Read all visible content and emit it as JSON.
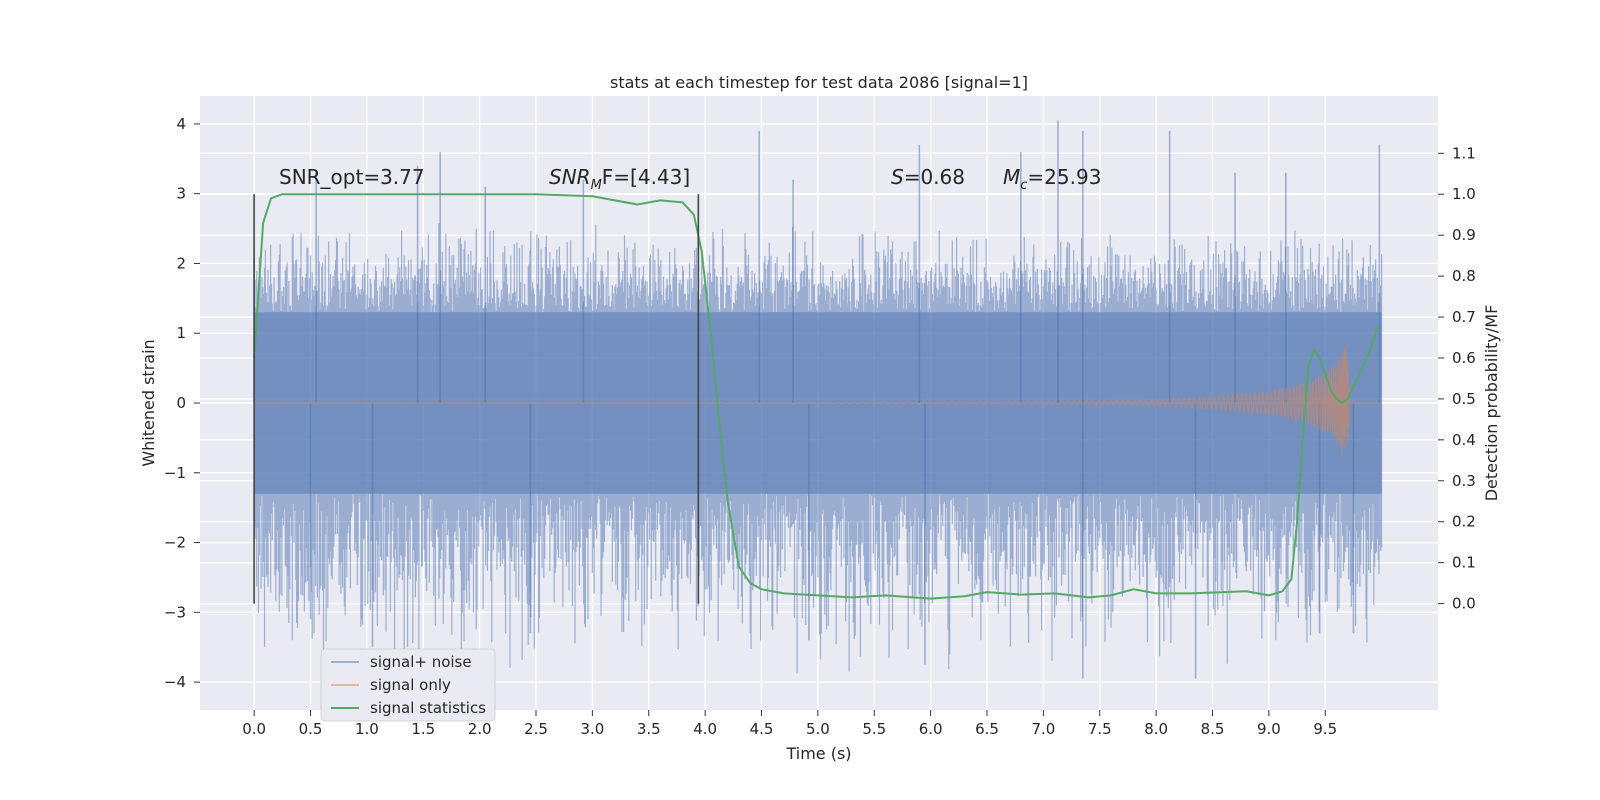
{
  "chart_data": {
    "type": "line",
    "title": "stats at each timestep for test data 2086 [signal=1]",
    "xlabel": "Time (s)",
    "ylabel": "Whitened strain",
    "ylabel_right": "Detection probability/MF",
    "xlim": [
      -0.48,
      10.5
    ],
    "ylim": [
      -4.4,
      4.4
    ],
    "ylim_right": [
      -0.26,
      1.24
    ],
    "x_ticks": [
      "0.0",
      "0.5",
      "1.0",
      "1.5",
      "2.0",
      "2.5",
      "3.0",
      "3.5",
      "4.0",
      "4.5",
      "5.0",
      "5.5",
      "6.0",
      "6.5",
      "7.0",
      "7.5",
      "8.0",
      "8.5",
      "9.0",
      "9.5"
    ],
    "y_ticks_left": [
      "−4",
      "−3",
      "−2",
      "−1",
      "0",
      "1",
      "2",
      "3",
      "4"
    ],
    "y_ticks_right": [
      "0.0",
      "0.1",
      "0.2",
      "0.3",
      "0.4",
      "0.5",
      "0.6",
      "0.7",
      "0.8",
      "0.9",
      "1.0",
      "1.1"
    ],
    "grid": true,
    "background": "#eaeaf2",
    "legend_position": "lower-left",
    "annotations": {
      "snr_opt": "SNR_opt=3.77",
      "snr_mf_main": "SNR",
      "snr_mf_sub": "M",
      "snr_mf_rest": "F=[4.43]",
      "s_label": "S",
      "s_value": "=0.68",
      "mc_label": "M",
      "mc_sub": "c",
      "mc_value": "=25.93"
    },
    "vertical_markers": [
      0.0,
      3.94
    ],
    "series": [
      {
        "name": "signal+ noise",
        "color": "#4c72b0",
        "axis": "left",
        "x_range": [
          0.0,
          10.0
        ],
        "envelope_core": [
          -1.3,
          1.3
        ],
        "envelope_typical": [
          -2.6,
          2.6
        ],
        "peaks": [
          {
            "x": 0.0,
            "y": 2.1
          },
          {
            "x": 0.55,
            "y": 3.3
          },
          {
            "x": 1.45,
            "y": 3.4
          },
          {
            "x": 1.65,
            "y": 3.6
          },
          {
            "x": 2.05,
            "y": 3.1
          },
          {
            "x": 2.92,
            "y": 3.2
          },
          {
            "x": 4.48,
            "y": 3.9
          },
          {
            "x": 4.78,
            "y": 3.2
          },
          {
            "x": 5.9,
            "y": 3.7
          },
          {
            "x": 6.8,
            "y": 3.6
          },
          {
            "x": 7.13,
            "y": 4.05
          },
          {
            "x": 7.35,
            "y": 3.9
          },
          {
            "x": 8.12,
            "y": 3.9
          },
          {
            "x": 8.7,
            "y": 3.3
          },
          {
            "x": 9.15,
            "y": 3.3
          },
          {
            "x": 9.98,
            "y": 3.7
          },
          {
            "x": 0.5,
            "y": -3.1
          },
          {
            "x": 1.05,
            "y": -3.5
          },
          {
            "x": 2.45,
            "y": -3.3
          },
          {
            "x": 4.92,
            "y": -3.4
          },
          {
            "x": 5.95,
            "y": -3.75
          },
          {
            "x": 7.35,
            "y": -3.95
          },
          {
            "x": 8.35,
            "y": -3.95
          },
          {
            "x": 9.45,
            "y": -3.3
          },
          {
            "x": 9.75,
            "y": -3.3
          }
        ]
      },
      {
        "name": "signal only",
        "color": "#dd8452",
        "axis": "left",
        "x": [
          0.0,
          7.0,
          8.0,
          8.5,
          9.0,
          9.3,
          9.5,
          9.6,
          9.65,
          9.69,
          9.72
        ],
        "amplitude": [
          0.0,
          0.02,
          0.05,
          0.09,
          0.17,
          0.28,
          0.42,
          0.58,
          0.75,
          0.88,
          0.0
        ]
      },
      {
        "name": "signal statistics",
        "color": "#55a868",
        "axis": "right",
        "x": [
          0.0,
          0.08,
          0.15,
          0.25,
          0.5,
          1.0,
          2.0,
          2.5,
          3.0,
          3.2,
          3.4,
          3.6,
          3.8,
          3.9,
          3.97,
          4.05,
          4.12,
          4.2,
          4.3,
          4.4,
          4.5,
          4.7,
          5.0,
          5.3,
          5.6,
          6.0,
          6.3,
          6.5,
          6.8,
          7.1,
          7.4,
          7.6,
          7.8,
          8.0,
          8.3,
          8.6,
          8.8,
          9.0,
          9.12,
          9.2,
          9.25,
          9.3,
          9.35,
          9.4,
          9.45,
          9.5,
          9.55,
          9.6,
          9.65,
          9.7,
          9.75,
          9.8,
          9.9,
          9.97
        ],
        "values": [
          0.6,
          0.93,
          0.99,
          1.0,
          1.0,
          1.0,
          1.0,
          1.0,
          0.995,
          0.985,
          0.975,
          0.985,
          0.98,
          0.95,
          0.86,
          0.66,
          0.46,
          0.25,
          0.09,
          0.05,
          0.035,
          0.025,
          0.02,
          0.015,
          0.02,
          0.012,
          0.018,
          0.028,
          0.022,
          0.025,
          0.015,
          0.02,
          0.035,
          0.025,
          0.025,
          0.028,
          0.03,
          0.02,
          0.03,
          0.06,
          0.2,
          0.4,
          0.58,
          0.62,
          0.6,
          0.56,
          0.52,
          0.5,
          0.49,
          0.5,
          0.53,
          0.56,
          0.62,
          0.68
        ]
      }
    ]
  }
}
